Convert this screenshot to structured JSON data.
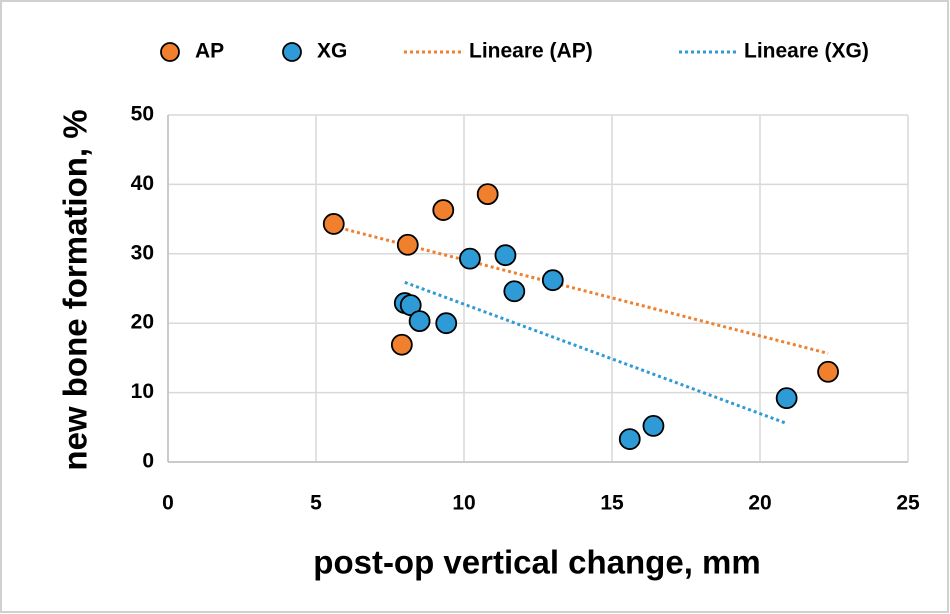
{
  "chart_data": {
    "type": "scatter",
    "x_label": "post-op vertical change, mm",
    "y_label": "new bone formation, %",
    "series": [
      {
        "name": "AP",
        "color": "#f07f2e",
        "x": [
          5.6,
          8.1,
          9.3,
          10.8,
          7.9,
          22.3
        ],
        "values": [
          34.3,
          31.3,
          36.3,
          38.6,
          16.9,
          13.0
        ],
        "trendline": {
          "name": "Lineare (AP)"
        }
      },
      {
        "name": "XG",
        "color": "#2e9bd6",
        "x": [
          8.0,
          8.2,
          8.5,
          9.4,
          10.2,
          11.4,
          11.7,
          13.0,
          15.6,
          16.4,
          20.9
        ],
        "values": [
          22.9,
          22.6,
          20.3,
          20.0,
          29.3,
          29.8,
          24.6,
          26.2,
          3.3,
          5.2,
          9.2
        ],
        "trendline": {
          "name": "Lineare (XG)"
        }
      }
    ],
    "xlim": [
      0,
      25
    ],
    "xticks": [
      0,
      5,
      10,
      15,
      20,
      25
    ],
    "ylim": [
      0,
      50
    ],
    "yticks": [
      0,
      10,
      20,
      30,
      40,
      50
    ],
    "grid": true,
    "legend": "top"
  }
}
